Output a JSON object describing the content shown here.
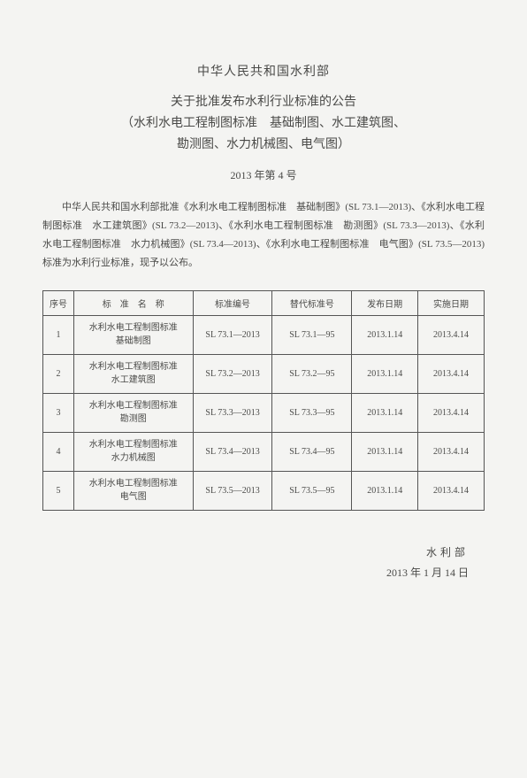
{
  "header": {
    "department": "中华人民共和国水利部",
    "title_l1": "关于批准发布水利行业标准的公告",
    "title_l2": "（水利水电工程制图标准　基础制图、水工建筑图、",
    "title_l3": "勘测图、水力机械图、电气图）",
    "doc_number": "2013 年第 4 号"
  },
  "body": "中华人民共和国水利部批准《水利水电工程制图标准　基础制图》(SL 73.1—2013)、《水利水电工程制图标准　水工建筑图》(SL 73.2—2013)、《水利水电工程制图标准　勘测图》(SL 73.3—2013)、《水利水电工程制图标准　水力机械图》(SL 73.4—2013)、《水利水电工程制图标准　电气图》(SL 73.5—2013)标准为水利行业标准，现予以公布。",
  "table": {
    "headers": {
      "seq": "序号",
      "name": "标　准　名　称",
      "code": "标准编号",
      "replaced": "替代标准号",
      "pub_date": "发布日期",
      "impl_date": "实施日期"
    },
    "rows": [
      {
        "seq": "1",
        "name_l1": "水利水电工程制图标准",
        "name_l2": "基础制图",
        "code": "SL 73.1—2013",
        "replaced": "SL 73.1—95",
        "pub": "2013.1.14",
        "impl": "2013.4.14"
      },
      {
        "seq": "2",
        "name_l1": "水利水电工程制图标准",
        "name_l2": "水工建筑图",
        "code": "SL 73.2—2013",
        "replaced": "SL 73.2—95",
        "pub": "2013.1.14",
        "impl": "2013.4.14"
      },
      {
        "seq": "3",
        "name_l1": "水利水电工程制图标准",
        "name_l2": "勘测图",
        "code": "SL 73.3—2013",
        "replaced": "SL 73.3—95",
        "pub": "2013.1.14",
        "impl": "2013.4.14"
      },
      {
        "seq": "4",
        "name_l1": "水利水电工程制图标准",
        "name_l2": "水力机械图",
        "code": "SL 73.4—2013",
        "replaced": "SL 73.4—95",
        "pub": "2013.1.14",
        "impl": "2013.4.14"
      },
      {
        "seq": "5",
        "name_l1": "水利水电工程制图标准",
        "name_l2": "电气图",
        "code": "SL 73.5—2013",
        "replaced": "SL 73.5—95",
        "pub": "2013.1.14",
        "impl": "2013.4.14"
      }
    ]
  },
  "footer": {
    "signature": "水利部",
    "date": "2013 年 1 月 14 日"
  }
}
